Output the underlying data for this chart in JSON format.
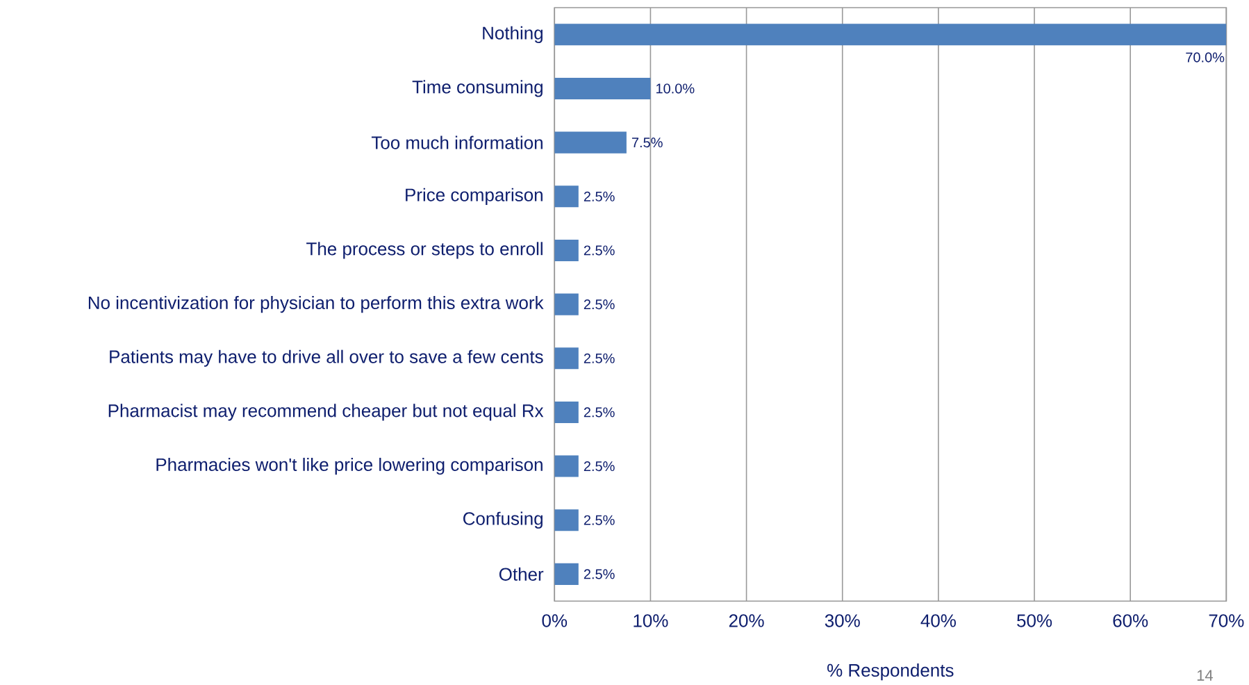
{
  "chart_data": {
    "type": "bar",
    "orientation": "horizontal",
    "xlabel": "% Respondents",
    "categories": [
      "Nothing",
      "Time consuming",
      "Too much information",
      "Price comparison",
      "The process or steps to enroll",
      "No incentivization for physician to perform this extra work",
      "Patients may have to drive all over to save a few cents",
      "Pharmacist may recommend cheaper but not equal Rx",
      "Pharmacies won't like price lowering comparison",
      "Confusing",
      "Other"
    ],
    "values": [
      70,
      10,
      7.5,
      2.5,
      2.5,
      2.5,
      2.5,
      2.5,
      2.5,
      2.5,
      2.5
    ],
    "value_labels": [
      "70.0%",
      "10.0%",
      "7.5%",
      "2.5%",
      "2.5%",
      "2.5%",
      "2.5%",
      "2.5%",
      "2.5%",
      "2.5%",
      "2.5%"
    ],
    "color": "#4f81bd",
    "xlim": [
      0,
      70
    ],
    "xticks": [
      {
        "value": 0,
        "label": "0%"
      },
      {
        "value": 10,
        "label": "10%"
      },
      {
        "value": 20,
        "label": "20%"
      },
      {
        "value": 30,
        "label": "30%"
      },
      {
        "value": 40,
        "label": "40%"
      },
      {
        "value": 50,
        "label": "50%"
      },
      {
        "value": 60,
        "label": "60%"
      },
      {
        "value": 70,
        "label": "70%"
      }
    ],
    "grid": "x",
    "annotations": [
      "14"
    ]
  }
}
